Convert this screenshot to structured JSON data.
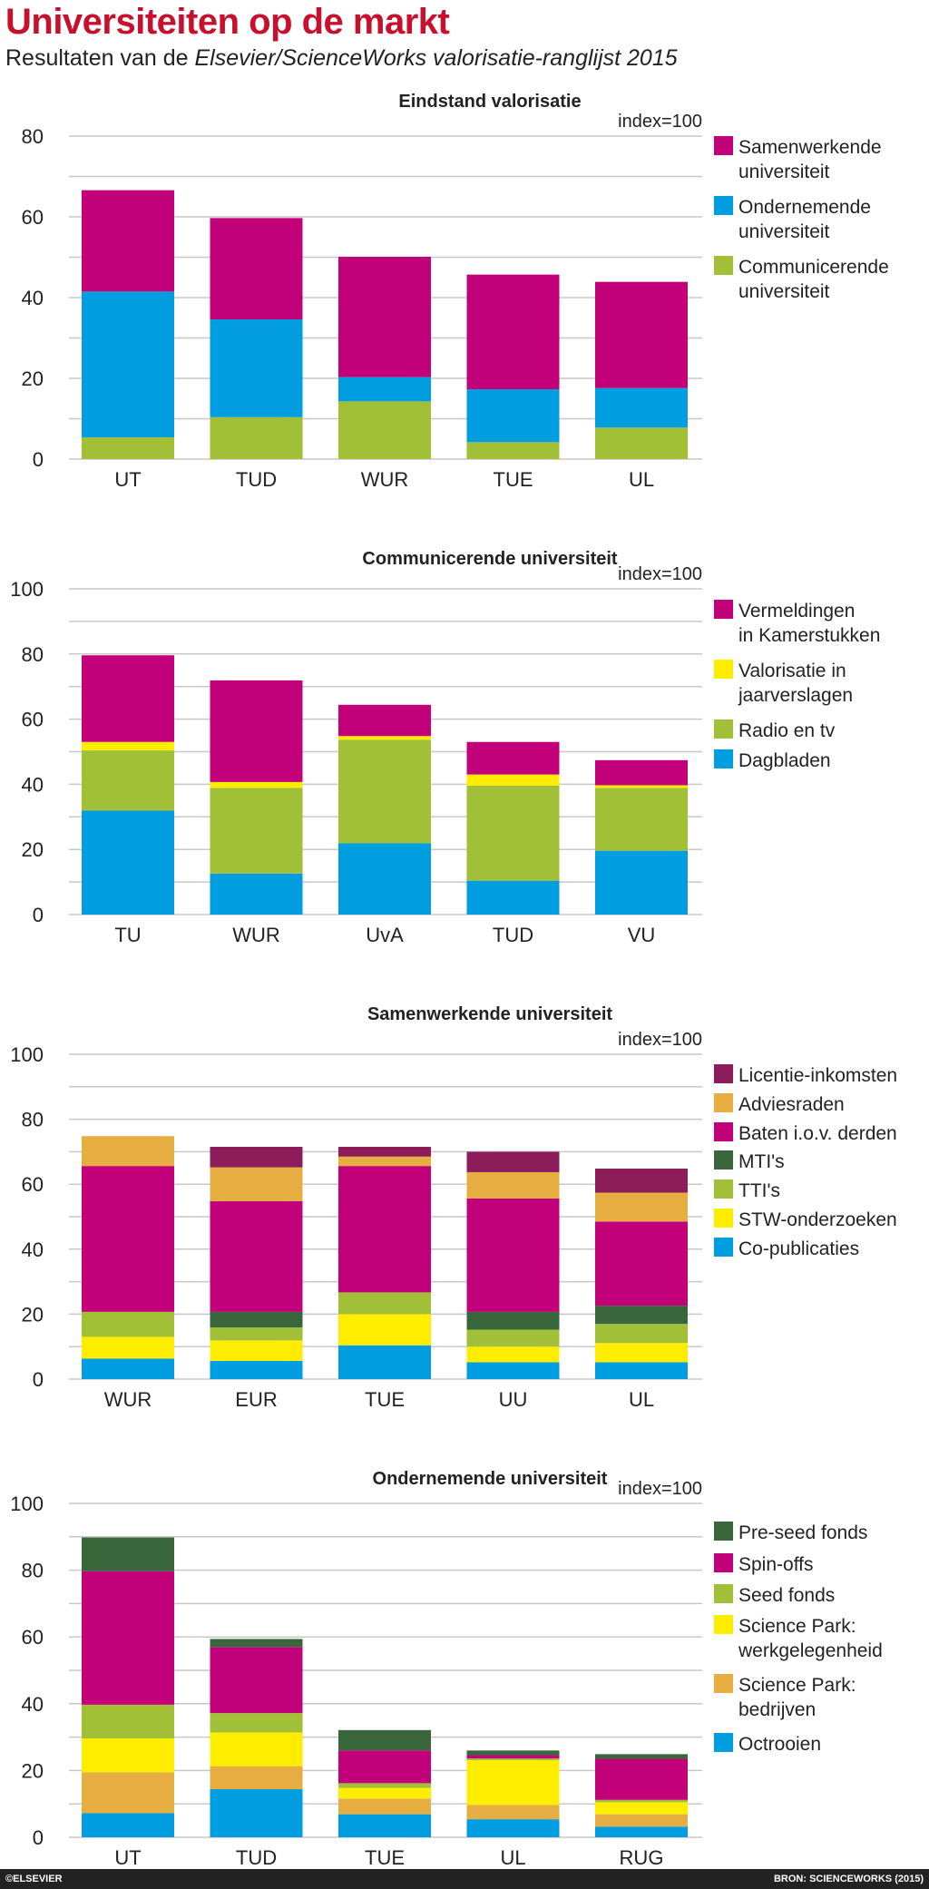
{
  "title": "Universiteiten op de markt",
  "subtitle_plain": "Resultaten van de ",
  "subtitle_italic": "Elsevier/ScienceWorks valorisatie-ranglijst 2015",
  "footer": {
    "credit": "©ELSEVIER",
    "source": "BRON: SCIENCEWORKS (2015)"
  },
  "chart_data": [
    {
      "type": "bar",
      "stacked": true,
      "title": "Eindstand valorisatie",
      "note": "index=100",
      "ylim": [
        0,
        80
      ],
      "yticks": [
        0,
        20,
        40,
        60,
        80
      ],
      "grid": true,
      "legend_placement": "right",
      "categories": [
        "UT",
        "TUD",
        "WUR",
        "TUE",
        "UL"
      ],
      "series": [
        {
          "name": "Communicerende universiteit",
          "label_lines": [
            "Communicerende",
            "universiteit"
          ],
          "color": "#a2c037",
          "values": [
            5.4,
            10.4,
            14.3,
            4.2,
            7.8
          ]
        },
        {
          "name": "Ondernemende universiteit",
          "label_lines": [
            "Ondernemende",
            "universiteit"
          ],
          "color": "#009ee0",
          "values": [
            36.1,
            24.2,
            6.0,
            13.1,
            9.8
          ]
        },
        {
          "name": "Samenwerkende universiteit",
          "label_lines": [
            "Samenwerkende",
            "universiteit"
          ],
          "color": "#c2007a",
          "values": [
            25.1,
            25.1,
            29.8,
            28.4,
            26.3
          ]
        }
      ]
    },
    {
      "type": "bar",
      "stacked": true,
      "title": "Communicerende universiteit",
      "note": "index=100",
      "ylim": [
        0,
        100
      ],
      "yticks": [
        0,
        20,
        40,
        60,
        80,
        100
      ],
      "grid": true,
      "legend_placement": "right",
      "categories": [
        "TU",
        "WUR",
        "UvA",
        "TUD",
        "VU"
      ],
      "series": [
        {
          "name": "Dagbladen",
          "label_lines": [
            "Dagbladen"
          ],
          "color": "#009ee0",
          "values": [
            31.9,
            12.6,
            21.9,
            10.4,
            19.6
          ]
        },
        {
          "name": "Radio en tv",
          "label_lines": [
            "Radio en tv"
          ],
          "color": "#a2c037",
          "values": [
            18.5,
            26.3,
            31.8,
            29.2,
            19.3
          ]
        },
        {
          "name": "Valorisatie in jaarverslagen",
          "label_lines": [
            "Valorisatie in",
            "jaarverslagen"
          ],
          "color": "#ffed00",
          "values": [
            2.6,
            1.8,
            1.1,
            3.4,
            0.8
          ]
        },
        {
          "name": "Vermeldingen in Kamerstukken",
          "label_lines": [
            "Vermeldingen",
            "in Kamerstukken"
          ],
          "color": "#c2007a",
          "values": [
            26.6,
            31.2,
            9.6,
            10.0,
            7.7
          ]
        }
      ]
    },
    {
      "type": "bar",
      "stacked": true,
      "title": "Samenwerkende universiteit",
      "note": "index=100",
      "ylim": [
        0,
        100
      ],
      "yticks": [
        0,
        20,
        40,
        60,
        80,
        100
      ],
      "grid": true,
      "legend_placement": "right",
      "categories": [
        "WUR",
        "EUR",
        "TUE",
        "UU",
        "UL"
      ],
      "series": [
        {
          "name": "Co-publicaties",
          "label_lines": [
            "Co-publicaties"
          ],
          "color": "#009ee0",
          "values": [
            6.3,
            5.6,
            10.4,
            5.2,
            5.2
          ]
        },
        {
          "name": "STW-onderzoeken",
          "label_lines": [
            "STW-onderzoeken"
          ],
          "color": "#ffed00",
          "values": [
            6.7,
            6.3,
            9.6,
            4.8,
            5.9
          ]
        },
        {
          "name": "TTI's",
          "label_lines": [
            "TTI's"
          ],
          "color": "#a2c037",
          "values": [
            7.7,
            4.0,
            6.7,
            5.2,
            5.9
          ]
        },
        {
          "name": "MTI's",
          "label_lines": [
            "MTI's"
          ],
          "color": "#3a663c",
          "values": [
            0,
            4.8,
            0,
            5.5,
            5.6
          ]
        },
        {
          "name": "Baten i.o.v. derden",
          "label_lines": [
            "Baten i.o.v. derden"
          ],
          "color": "#c2007a",
          "values": [
            44.9,
            34.1,
            38.9,
            34.9,
            25.9
          ]
        },
        {
          "name": "Adviesraden",
          "label_lines": [
            "Adviesraden"
          ],
          "color": "#e6ae40",
          "values": [
            9.2,
            10.4,
            2.9,
            8.1,
            8.9
          ]
        },
        {
          "name": "Licentie-inkomsten",
          "label_lines": [
            "Licentie-inkomsten"
          ],
          "color": "#8c1c5a",
          "values": [
            0,
            6.3,
            3.0,
            6.3,
            7.4
          ]
        }
      ]
    },
    {
      "type": "bar",
      "stacked": true,
      "title": "Ondernemende universiteit",
      "note": "index=100",
      "ylim": [
        0,
        100
      ],
      "yticks": [
        0,
        20,
        40,
        60,
        80,
        100
      ],
      "grid": true,
      "legend_placement": "right",
      "categories": [
        "UT",
        "TUD",
        "TUE",
        "UL",
        "RUG"
      ],
      "series": [
        {
          "name": "Octrooien",
          "label_lines": [
            "Octrooien"
          ],
          "color": "#009ee0",
          "values": [
            7.2,
            14.4,
            6.9,
            5.4,
            3.2
          ]
        },
        {
          "name": "Science Park: bedrijven",
          "label_lines": [
            "Science Park:",
            "bedrijven"
          ],
          "color": "#e6ae40",
          "values": [
            12.3,
            6.9,
            4.7,
            4.3,
            3.7
          ]
        },
        {
          "name": "Science Park: werkgelegenheid",
          "label_lines": [
            "Science Park:",
            "werkgelegenheid"
          ],
          "color": "#ffed00",
          "values": [
            10.1,
            10.1,
            3.2,
            13.4,
            3.6
          ]
        },
        {
          "name": "Seed fonds",
          "label_lines": [
            "Seed fonds"
          ],
          "color": "#a2c037",
          "values": [
            10.1,
            5.8,
            1.4,
            0.5,
            0.7
          ]
        },
        {
          "name": "Spin-offs",
          "label_lines": [
            "Spin-offs"
          ],
          "color": "#c2007a",
          "values": [
            40.0,
            19.8,
            9.8,
            1.0,
            12.3
          ]
        },
        {
          "name": "Pre-seed fonds",
          "label_lines": [
            "Pre-seed fonds"
          ],
          "color": "#3a663c",
          "values": [
            10.1,
            2.4,
            6.1,
            1.4,
            1.4
          ]
        }
      ]
    }
  ]
}
